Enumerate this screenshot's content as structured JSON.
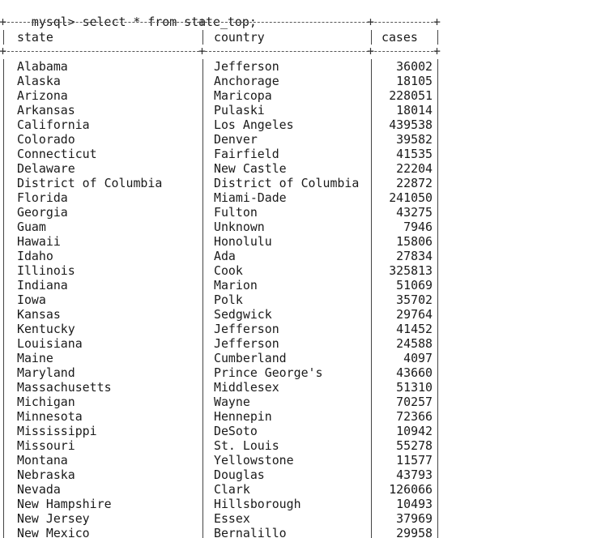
{
  "terminal": {
    "prompt": "mysql> ",
    "command": "select * from state_top;"
  },
  "table": {
    "columns": [
      "state",
      "country",
      "cases"
    ],
    "rows": [
      [
        "Alabama",
        "Jefferson",
        "36002"
      ],
      [
        "Alaska",
        "Anchorage",
        "18105"
      ],
      [
        "Arizona",
        "Maricopa",
        "228051"
      ],
      [
        "Arkansas",
        "Pulaski",
        "18014"
      ],
      [
        "California",
        "Los Angeles",
        "439538"
      ],
      [
        "Colorado",
        "Denver",
        "39582"
      ],
      [
        "Connecticut",
        "Fairfield",
        "41535"
      ],
      [
        "Delaware",
        "New Castle",
        "22204"
      ],
      [
        "District of Columbia",
        "District of Columbia",
        "22872"
      ],
      [
        "Florida",
        "Miami-Dade",
        "241050"
      ],
      [
        "Georgia",
        "Fulton",
        "43275"
      ],
      [
        "Guam",
        "Unknown",
        "7946"
      ],
      [
        "Hawaii",
        "Honolulu",
        "15806"
      ],
      [
        "Idaho",
        "Ada",
        "27834"
      ],
      [
        "Illinois",
        "Cook",
        "325813"
      ],
      [
        "Indiana",
        "Marion",
        "51069"
      ],
      [
        "Iowa",
        "Polk",
        "35702"
      ],
      [
        "Kansas",
        "Sedgwick",
        "29764"
      ],
      [
        "Kentucky",
        "Jefferson",
        "41452"
      ],
      [
        "Louisiana",
        "Jefferson",
        "24588"
      ],
      [
        "Maine",
        "Cumberland",
        "4097"
      ],
      [
        "Maryland",
        "Prince George's",
        "43660"
      ],
      [
        "Massachusetts",
        "Middlesex",
        "51310"
      ],
      [
        "Michigan",
        "Wayne",
        "70257"
      ],
      [
        "Minnesota",
        "Hennepin",
        "72366"
      ],
      [
        "Mississippi",
        "DeSoto",
        "10942"
      ],
      [
        "Missouri",
        "St. Louis",
        "55278"
      ],
      [
        "Montana",
        "Yellowstone",
        "11577"
      ],
      [
        "Nebraska",
        "Douglas",
        "43793"
      ],
      [
        "Nevada",
        "Clark",
        "126066"
      ],
      [
        "New Hampshire",
        "Hillsborough",
        "10493"
      ],
      [
        "New Jersey",
        "Essex",
        "37969"
      ],
      [
        "New Mexico",
        "Bernalillo",
        "29958"
      ]
    ]
  }
}
